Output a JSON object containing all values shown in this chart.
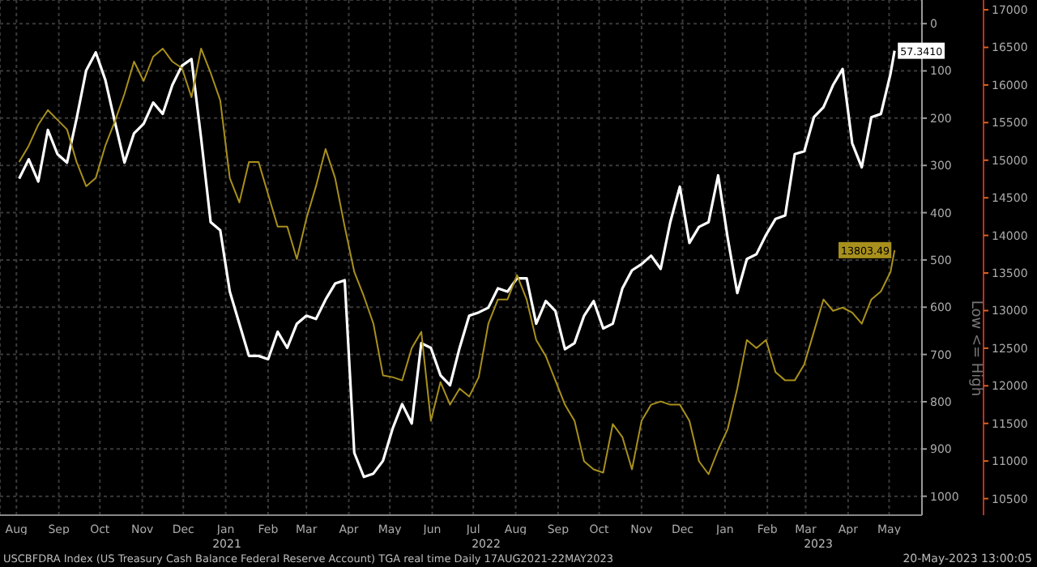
{
  "chart_data": {
    "type": "line",
    "title": "USCBFDRA Index (US Treasury Cash Balance Federal Reserve Account) TGA real time  Daily 17AUG2021-22MAY2023",
    "annotations": [
      "2021",
      "2022",
      "2023",
      "Low <= High",
      "20-May-2023 13:00:05"
    ],
    "x": [
      "2021-08-17",
      "2021-08-24",
      "2021-08-31",
      "2021-09-07",
      "2021-09-14",
      "2021-09-21",
      "2021-09-28",
      "2021-10-05",
      "2021-10-12",
      "2021-10-19",
      "2021-10-26",
      "2021-11-02",
      "2021-11-09",
      "2021-11-16",
      "2021-11-23",
      "2021-11-30",
      "2021-12-07",
      "2021-12-14",
      "2021-12-21",
      "2021-12-28",
      "2022-01-04",
      "2022-01-11",
      "2022-01-18",
      "2022-01-25",
      "2022-02-01",
      "2022-02-08",
      "2022-02-15",
      "2022-02-22",
      "2022-03-01",
      "2022-03-08",
      "2022-03-15",
      "2022-03-22",
      "2022-03-29",
      "2022-04-05",
      "2022-04-12",
      "2022-04-19",
      "2022-04-26",
      "2022-05-03",
      "2022-05-10",
      "2022-05-17",
      "2022-05-24",
      "2022-05-31",
      "2022-06-07",
      "2022-06-14",
      "2022-06-21",
      "2022-06-28",
      "2022-07-05",
      "2022-07-12",
      "2022-07-19",
      "2022-07-26",
      "2022-08-02",
      "2022-08-09",
      "2022-08-16",
      "2022-08-23",
      "2022-08-30",
      "2022-09-06",
      "2022-09-13",
      "2022-09-20",
      "2022-09-27",
      "2022-10-04",
      "2022-10-11",
      "2022-10-18",
      "2022-10-25",
      "2022-11-01",
      "2022-11-08",
      "2022-11-15",
      "2022-11-22",
      "2022-11-29",
      "2022-12-06",
      "2022-12-13",
      "2022-12-20",
      "2022-12-27",
      "2023-01-03",
      "2023-01-10",
      "2023-01-17",
      "2023-01-24",
      "2023-01-31",
      "2023-02-07",
      "2023-02-14",
      "2023-02-21",
      "2023-02-28",
      "2023-03-07",
      "2023-03-14",
      "2023-03-21",
      "2023-03-28",
      "2023-04-04",
      "2023-04-11",
      "2023-04-18",
      "2023-04-25",
      "2023-05-02",
      "2023-05-09",
      "2023-05-16",
      "2023-05-19"
    ],
    "series": [
      {
        "color": "#ffffff",
        "values": [
          328,
          287,
          334,
          225,
          276,
          294,
          201,
          99,
          61,
          119,
          208,
          294,
          232,
          212,
          167,
          191,
          130,
          89,
          75,
          242,
          420,
          437,
          567,
          635,
          703,
          703,
          710,
          652,
          686,
          635,
          618,
          625,
          584,
          550,
          543,
          908,
          959,
          952,
          925,
          857,
          805,
          846,
          676,
          686,
          744,
          765,
          686,
          618,
          611,
          601,
          560,
          567,
          539,
          539,
          635,
          587,
          608,
          689,
          676,
          618,
          587,
          645,
          635,
          560,
          522,
          509,
          491,
          519,
          420,
          345,
          464,
          430,
          420,
          321,
          454,
          570,
          498,
          488,
          447,
          413,
          406,
          276,
          270,
          198,
          177,
          130,
          96,
          253,
          304,
          198,
          191,
          106,
          57.341
        ],
        "value_labels": [
          null,
          null,
          null,
          null,
          null,
          null,
          null,
          null,
          null,
          null,
          null,
          null,
          null,
          null,
          null,
          null,
          null,
          null,
          null,
          null,
          null,
          null,
          null,
          null,
          null,
          null,
          null,
          null,
          null,
          null,
          null,
          null,
          null,
          null,
          null,
          null,
          null,
          null,
          null,
          null,
          null,
          null,
          null,
          null,
          null,
          null,
          null,
          null,
          null,
          null,
          null,
          null,
          null,
          null,
          null,
          null,
          null,
          null,
          null,
          null,
          null,
          null,
          null,
          null,
          null,
          null,
          null,
          null,
          null,
          null,
          null,
          null,
          null,
          null,
          null,
          null,
          null,
          null,
          null,
          null,
          null,
          null,
          null,
          null,
          null,
          null,
          null,
          null,
          null,
          null,
          null,
          null,
          "57.3410"
        ]
      },
      {
        "color": "#a8901c",
        "axis": "y2",
        "values": [
          14977,
          15192,
          15472,
          15666,
          15537,
          15408,
          14977,
          14654,
          14762,
          15192,
          15515,
          15881,
          16311,
          16053,
          16376,
          16484,
          16311,
          16225,
          15838,
          16484,
          16161,
          15795,
          14762,
          14439,
          14977,
          14977,
          14547,
          14116,
          14116,
          13686,
          14224,
          14654,
          15149,
          14762,
          14116,
          13514,
          13191,
          12825,
          12137,
          12115,
          12072,
          12502,
          12718,
          11534,
          12050,
          11749,
          11964,
          11857,
          12115,
          12825,
          13148,
          13148,
          13471,
          13148,
          12610,
          12395,
          12072,
          11749,
          11534,
          10996,
          10888,
          10845,
          11491,
          11319,
          10888,
          11534,
          11749,
          11792,
          11749,
          11749,
          11534,
          10996,
          10824,
          11147,
          11426,
          11964,
          12610,
          12502,
          12610,
          12180,
          12072,
          12072,
          12287,
          12718,
          13148,
          12997,
          13040,
          12975,
          12825,
          13148,
          13256,
          13514,
          13803.49
        ],
        "value_labels": [
          null,
          null,
          null,
          null,
          null,
          null,
          null,
          null,
          null,
          null,
          null,
          null,
          null,
          null,
          null,
          null,
          null,
          null,
          null,
          null,
          null,
          null,
          null,
          null,
          null,
          null,
          null,
          null,
          null,
          null,
          null,
          null,
          null,
          null,
          null,
          null,
          null,
          null,
          null,
          null,
          null,
          null,
          null,
          null,
          null,
          null,
          null,
          null,
          null,
          null,
          null,
          null,
          null,
          null,
          null,
          null,
          null,
          null,
          null,
          null,
          null,
          null,
          null,
          null,
          null,
          null,
          null,
          null,
          null,
          null,
          null,
          null,
          null,
          null,
          null,
          null,
          null,
          null,
          null,
          null,
          null,
          null,
          null,
          null,
          null,
          null,
          null,
          null,
          null,
          null,
          null,
          null,
          "13803.49"
        ]
      }
    ],
    "xlim": [
      "2021-08-03",
      "2023-06-08"
    ],
    "xticks": [
      {
        "value": "2021-08-15",
        "label": "Aug"
      },
      {
        "value": "2021-09-15",
        "label": "Sep"
      },
      {
        "value": "2021-10-15",
        "label": "Oct"
      },
      {
        "value": "2021-11-15",
        "label": "Nov"
      },
      {
        "value": "2021-12-15",
        "label": "Dec"
      },
      {
        "value": "2022-01-15",
        "label": "Jan"
      },
      {
        "value": "2022-02-15",
        "label": "Feb"
      },
      {
        "value": "2022-03-15",
        "label": "Mar"
      },
      {
        "value": "2022-04-15",
        "label": "Apr"
      },
      {
        "value": "2022-05-15",
        "label": "May"
      },
      {
        "value": "2022-06-15",
        "label": "Jun"
      },
      {
        "value": "2022-07-15",
        "label": "Jul"
      },
      {
        "value": "2022-08-15",
        "label": "Aug"
      },
      {
        "value": "2022-09-15",
        "label": "Sep"
      },
      {
        "value": "2022-10-15",
        "label": "Oct"
      },
      {
        "value": "2022-11-15",
        "label": "Nov"
      },
      {
        "value": "2022-12-15",
        "label": "Dec"
      },
      {
        "value": "2023-01-15",
        "label": "Jan"
      },
      {
        "value": "2023-02-15",
        "label": "Feb"
      },
      {
        "value": "2023-03-15",
        "label": "Mar"
      },
      {
        "value": "2023-04-15",
        "label": "Apr"
      },
      {
        "value": "2023-05-15",
        "label": "May"
      }
    ],
    "ylim": [
      1040,
      -50
    ],
    "yticks": [
      0,
      100,
      200,
      300,
      400,
      500,
      600,
      700,
      800,
      900,
      1000
    ],
    "y2lim": [
      10280,
      17130
    ],
    "y2ticks": [
      10500,
      11000,
      11500,
      12000,
      12500,
      13000,
      13500,
      14000,
      14500,
      15000,
      15500,
      16000,
      16500,
      17000
    ],
    "grid": true,
    "legend": false,
    "marker": "none",
    "line_style": "solid"
  }
}
